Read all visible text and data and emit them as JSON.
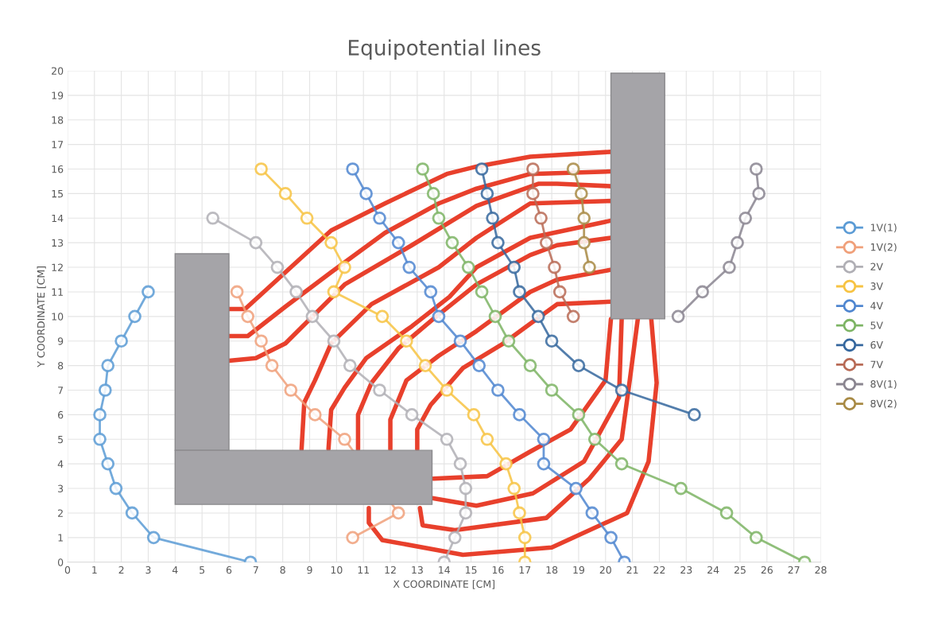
{
  "chart_data": {
    "type": "line",
    "title": "Equipotential lines",
    "xlabel": "X COORDINATE [CM]",
    "ylabel": "Y COORDINATE [CM]",
    "xlim": [
      0,
      28
    ],
    "xticks": [
      0,
      1,
      2,
      3,
      4,
      5,
      6,
      7,
      8,
      9,
      10,
      11,
      12,
      13,
      14,
      15,
      16,
      17,
      18,
      19,
      20,
      21,
      22,
      23,
      24,
      25,
      26,
      27,
      28
    ],
    "ylim": [
      0,
      20
    ],
    "yticks": [
      0,
      1,
      2,
      3,
      4,
      5,
      6,
      7,
      8,
      9,
      10,
      11,
      12,
      13,
      14,
      15,
      16,
      17,
      18,
      19,
      20
    ],
    "grid": true,
    "legend": "right",
    "marker": "circle",
    "series": [
      {
        "name": "1V(1)",
        "color": "#5b9bd5",
        "x": [
          6.8,
          3.2,
          2.4,
          1.8,
          1.5,
          1.2,
          1.2,
          1.4,
          1.5,
          2.0,
          2.5,
          3.0
        ],
        "values": [
          0,
          1,
          2,
          3,
          4,
          5,
          6,
          7,
          8,
          9,
          10,
          11
        ]
      },
      {
        "name": "1V(2)",
        "color": "#f0a07a",
        "x": [
          6.3,
          6.7,
          7.2,
          7.6,
          8.3,
          9.2,
          10.3,
          12.3,
          10.6
        ],
        "values": [
          11,
          10,
          9,
          8,
          7,
          6,
          5,
          2,
          1
        ]
      },
      {
        "name": "2V",
        "color": "#b0afb5",
        "x": [
          5.4,
          7.0,
          7.8,
          8.5,
          9.1,
          9.9,
          10.5,
          11.6,
          12.8,
          14.1,
          14.6,
          14.8,
          14.8,
          14.4,
          14.0
        ],
        "values": [
          14,
          13,
          12,
          11,
          10,
          9,
          8,
          7,
          6,
          5,
          4,
          3,
          2,
          1,
          0
        ]
      },
      {
        "name": "3V",
        "color": "#f7c342",
        "x": [
          7.2,
          8.1,
          8.9,
          9.8,
          10.3,
          9.9,
          11.7,
          12.6,
          13.3,
          14.1,
          15.1,
          15.6,
          16.3,
          16.6,
          16.8,
          17.0,
          17.0
        ],
        "values": [
          16,
          15,
          14,
          13,
          12,
          11,
          10,
          9,
          8,
          7,
          6,
          5,
          4,
          3,
          2,
          1,
          0
        ]
      },
      {
        "name": "4V",
        "color": "#4f86d0",
        "x": [
          10.6,
          11.1,
          11.6,
          12.3,
          12.7,
          13.5,
          13.8,
          14.6,
          15.3,
          16.0,
          16.8,
          17.7,
          17.7,
          18.9,
          19.5,
          20.2,
          20.7
        ],
        "values": [
          16,
          15,
          14,
          13,
          12,
          11,
          10,
          9,
          8,
          7,
          6,
          5,
          4,
          3,
          2,
          1,
          0
        ]
      },
      {
        "name": "5V",
        "color": "#7db464",
        "x": [
          13.2,
          13.6,
          13.8,
          14.3,
          14.9,
          15.4,
          15.9,
          16.4,
          17.2,
          18.0,
          19.0,
          19.6,
          20.6,
          22.8,
          24.5,
          25.6,
          27.4
        ],
        "values": [
          16,
          15,
          14,
          13,
          12,
          11,
          10,
          9,
          8,
          7,
          6,
          5,
          4,
          3,
          2,
          1,
          0
        ]
      },
      {
        "name": "6V",
        "color": "#35679e",
        "x": [
          15.4,
          15.6,
          15.8,
          16.0,
          16.6,
          16.8,
          17.5,
          18.0,
          19.0,
          20.6,
          23.3
        ],
        "values": [
          16,
          15,
          14,
          13,
          12,
          11,
          10,
          9,
          8,
          7,
          6
        ]
      },
      {
        "name": "7V",
        "color": "#b86a55",
        "x": [
          17.3,
          17.3,
          17.6,
          17.8,
          18.1,
          18.3,
          18.8
        ],
        "values": [
          16,
          15,
          14,
          13,
          12,
          11,
          10
        ]
      },
      {
        "name": "8V(1)",
        "color": "#8a8590",
        "x": [
          25.6,
          25.7,
          25.2,
          24.9,
          24.6,
          23.6,
          22.7
        ],
        "values": [
          16,
          15,
          14,
          13,
          12,
          11,
          10
        ]
      },
      {
        "name": "8V(2)",
        "color": "#a88a44",
        "x": [
          18.8,
          19.1,
          19.2,
          19.2,
          19.4
        ],
        "values": [
          16,
          15,
          14,
          13,
          12
        ]
      },
      {
        "color": "#e8402c",
        "marker": "none",
        "x": [
          6.0,
          6.6,
          7.8,
          9.8,
          11.8,
          14.1,
          15.2,
          17.2,
          20.2
        ],
        "values": [
          10.3,
          10.3,
          11.5,
          13.5,
          14.6,
          15.8,
          16.1,
          16.5,
          16.7
        ]
      },
      {
        "color": "#e8402c",
        "marker": "none",
        "x": [
          6.0,
          6.7,
          8.1,
          9.8,
          11.8,
          13.8,
          15.2,
          17.2,
          20.2
        ],
        "values": [
          9.2,
          9.2,
          10.4,
          11.8,
          13.4,
          14.6,
          15.2,
          15.8,
          15.9
        ]
      },
      {
        "color": "#e8402c",
        "marker": "none",
        "x": [
          6.0,
          7.0,
          8.1,
          10.3,
          12.8,
          15.2,
          17.5,
          18.2,
          20.2
        ],
        "values": [
          8.2,
          8.3,
          8.9,
          11.3,
          12.9,
          14.5,
          15.4,
          15.4,
          15.3
        ]
      },
      {
        "color": "#e8402c",
        "marker": "none",
        "x": [
          8.7,
          8.8,
          9.2,
          9.8,
          11.3,
          13.8,
          15.2,
          17.2,
          20.2
        ],
        "values": [
          4.6,
          6.5,
          7.4,
          8.9,
          10.5,
          12.0,
          13.2,
          14.6,
          14.7
        ]
      },
      {
        "color": "#e8402c",
        "marker": "none",
        "x": [
          9.7,
          9.8,
          10.3,
          11.1,
          12.8,
          14.2,
          15.2,
          17.2,
          20.2
        ],
        "values": [
          4.6,
          6.2,
          7.1,
          8.3,
          9.6,
          10.8,
          12.0,
          13.2,
          13.9
        ]
      },
      {
        "color": "#e8402c",
        "marker": "none",
        "x": [
          10.8,
          10.8,
          11.3,
          12.3,
          13.6,
          15.2,
          17.2,
          18.2,
          20.2
        ],
        "values": [
          4.6,
          6.0,
          7.3,
          8.7,
          9.9,
          11.3,
          12.5,
          12.9,
          13.2
        ]
      },
      {
        "color": "#e8402c",
        "marker": "none",
        "x": [
          12.0,
          12.0,
          12.6,
          13.8,
          15.2,
          17.2,
          18.2,
          20.2
        ],
        "values": [
          4.6,
          5.8,
          7.4,
          8.4,
          9.4,
          11.0,
          11.5,
          11.9
        ]
      },
      {
        "color": "#e8402c",
        "marker": "none",
        "x": [
          13.0,
          13.0,
          13.5,
          14.7,
          16.2,
          17.2,
          18.2,
          20.2
        ],
        "values": [
          4.6,
          5.4,
          6.4,
          7.9,
          8.9,
          9.7,
          10.5,
          10.6
        ]
      },
      {
        "color": "#e8402c",
        "marker": "none",
        "x": [
          13.6,
          15.6,
          17.2,
          18.7,
          20.0,
          20.2
        ],
        "values": [
          3.4,
          3.5,
          4.5,
          5.4,
          7.4,
          9.9
        ]
      },
      {
        "color": "#e8402c",
        "marker": "none",
        "x": [
          13.6,
          15.2,
          17.3,
          19.2,
          20.5,
          20.6
        ],
        "values": [
          2.6,
          2.3,
          2.8,
          4.1,
          6.7,
          9.9
        ]
      },
      {
        "color": "#e8402c",
        "marker": "none",
        "x": [
          13.1,
          13.2,
          14.4,
          17.8,
          19.4,
          20.6,
          20.9,
          21.2
        ],
        "values": [
          2.2,
          1.5,
          1.3,
          1.8,
          3.4,
          5.0,
          7.4,
          9.9
        ]
      },
      {
        "color": "#e8402c",
        "marker": "none",
        "x": [
          11.2,
          11.2,
          11.7,
          14.7,
          18.0,
          20.8,
          21.6,
          21.9,
          21.7
        ],
        "values": [
          2.2,
          1.6,
          0.9,
          0.3,
          0.6,
          2.0,
          4.1,
          7.3,
          9.9
        ]
      }
    ]
  }
}
